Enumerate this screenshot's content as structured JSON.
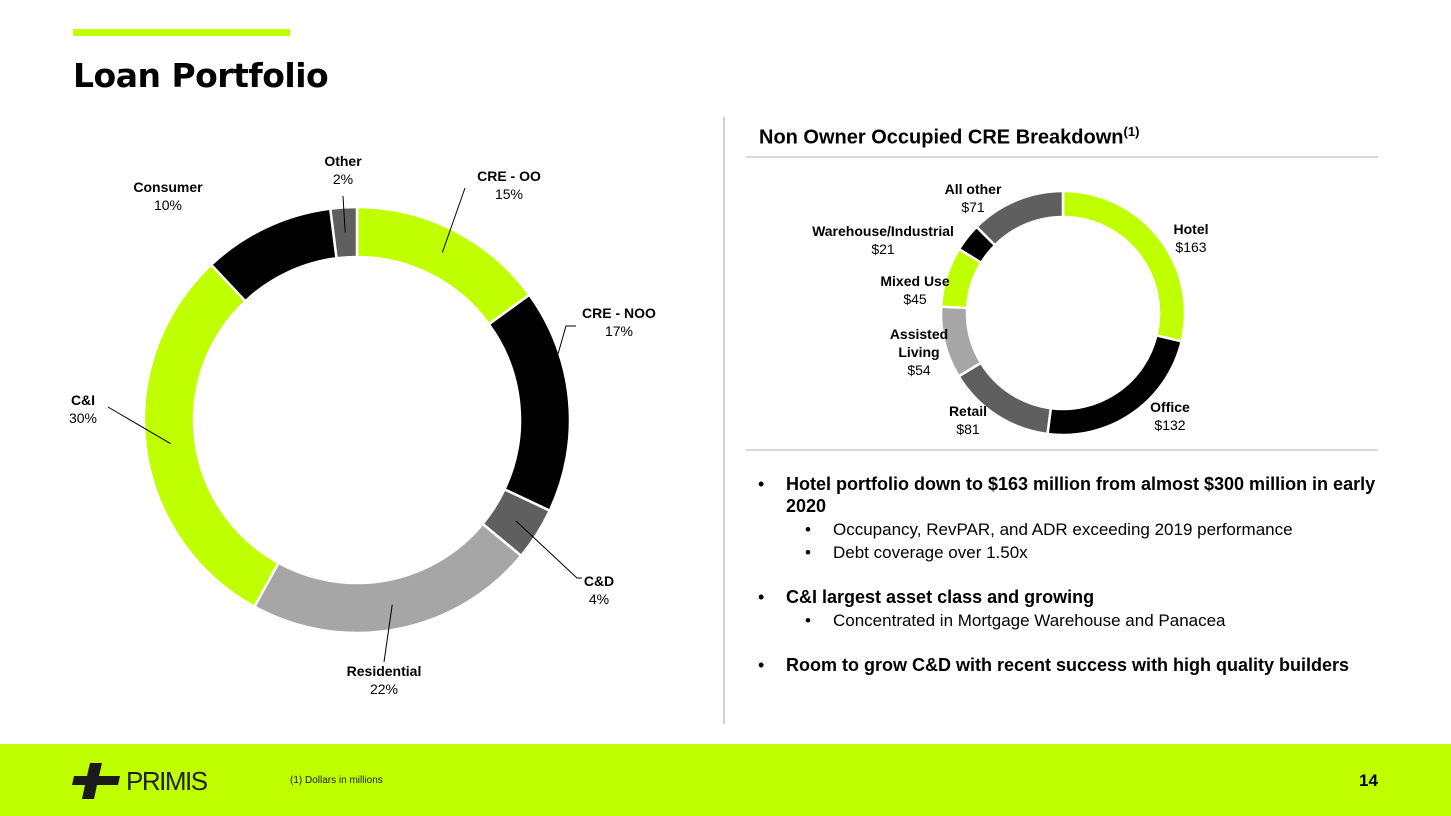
{
  "title": "Loan Portfolio",
  "right_title": "Non Owner Occupied CRE Breakdown",
  "right_title_sup": "(1)",
  "colors": {
    "accent": "#bfff00",
    "black": "#000000",
    "dark_gray": "#5f5f5f",
    "light_gray": "#a6a6a6"
  },
  "chart_data": [
    {
      "type": "donut",
      "title": "",
      "slices": [
        {
          "label": "CRE - OO",
          "value": 15,
          "value_label": "15%",
          "color": "#bfff00"
        },
        {
          "label": "CRE - NOO",
          "value": 17,
          "value_label": "17%",
          "color": "#000000"
        },
        {
          "label": "C&D",
          "value": 4,
          "value_label": "4%",
          "color": "#5f5f5f"
        },
        {
          "label": "Residential",
          "value": 22,
          "value_label": "22%",
          "color": "#a6a6a6"
        },
        {
          "label": "C&I",
          "value": 30,
          "value_label": "30%",
          "color": "#bfff00"
        },
        {
          "label": "Consumer",
          "value": 10,
          "value_label": "10%",
          "color": "#000000"
        },
        {
          "label": "Other",
          "value": 2,
          "value_label": "2%",
          "color": "#5f5f5f"
        }
      ]
    },
    {
      "type": "donut",
      "title": "Non Owner Occupied CRE Breakdown",
      "unit": "$ millions",
      "slices": [
        {
          "label": "Hotel",
          "value": 163,
          "value_label": "$163",
          "color": "#bfff00"
        },
        {
          "label": "Office",
          "value": 132,
          "value_label": "$132",
          "color": "#000000"
        },
        {
          "label": "Retail",
          "value": 81,
          "value_label": "$81",
          "color": "#5f5f5f"
        },
        {
          "label": "Assisted Living",
          "value": 54,
          "value_label": "$54",
          "color": "#a6a6a6"
        },
        {
          "label": "Mixed Use",
          "value": 45,
          "value_label": "$45",
          "color": "#bfff00"
        },
        {
          "label": "Warehouse/Industrial",
          "value": 21,
          "value_label": "$21",
          "color": "#000000"
        },
        {
          "label": "All other",
          "value": 71,
          "value_label": "$71",
          "color": "#5f5f5f"
        }
      ]
    }
  ],
  "bullets": [
    {
      "text": "Hotel portfolio down to $163 million from almost $300 million in early 2020",
      "subs": [
        "Occupancy, RevPAR, and ADR exceeding 2019 performance",
        "Debt coverage over 1.50x"
      ]
    },
    {
      "text": "C&I largest asset class and growing",
      "subs": [
        "Concentrated in Mortgage Warehouse and Panacea"
      ]
    },
    {
      "text": "Room to grow C&D with recent success with high quality builders",
      "subs": []
    }
  ],
  "bullet_glyph": "•",
  "footer": {
    "logo_text": "PRIMIS",
    "footnote": "(1) Dollars in millions",
    "page_number": "14"
  }
}
